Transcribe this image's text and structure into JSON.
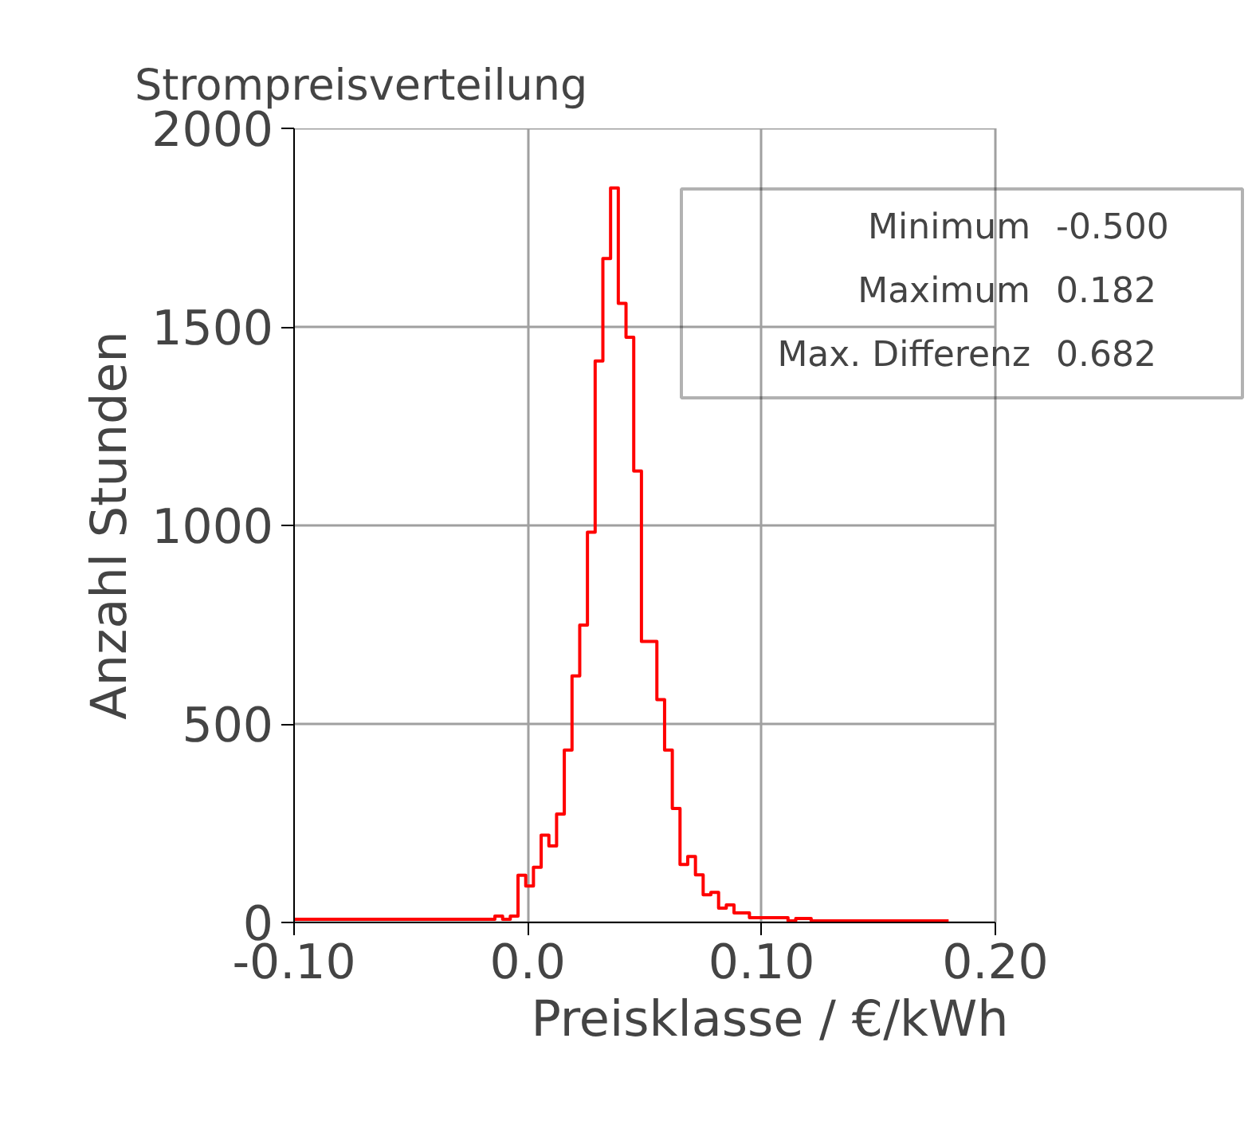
{
  "chart_data": {
    "type": "histogram",
    "title": "Strompreisverteilung",
    "xlabel": "Preisklasse / €/kWh",
    "ylabel": "Anzahl Stunden",
    "bins": [
      -0.1,
      -0.0141,
      -0.0108,
      -0.0075,
      -0.0042,
      -0.0009,
      0.0024,
      0.0057,
      0.009,
      0.0123,
      0.0156,
      0.0189,
      0.0222,
      0.0255,
      0.0288,
      0.0321,
      0.0354,
      0.0387,
      0.042,
      0.0453,
      0.0486,
      0.0519,
      0.0552,
      0.0585,
      0.0618,
      0.0651,
      0.0684,
      0.0717,
      0.075,
      0.0783,
      0.0816,
      0.0849,
      0.0882,
      0.0915,
      0.0948,
      0.0981,
      0.1014,
      0.1047,
      0.108,
      0.1113,
      0.1146,
      0.1179,
      0.1212,
      0.18
    ],
    "values": [
      8,
      16,
      8,
      16,
      119,
      92,
      139,
      220,
      193,
      273,
      434,
      621,
      749,
      983,
      1414,
      1672,
      1850,
      1559,
      1474,
      1137,
      708,
      708,
      561,
      434,
      287,
      146,
      166,
      120,
      70,
      76,
      36,
      44,
      24,
      24,
      12,
      12,
      12,
      12,
      12,
      4,
      10,
      10,
      4
    ],
    "color": "#ff0000",
    "xlim": [
      -0.1,
      0.2
    ],
    "xticks": [
      {
        "value": -0.1,
        "label": "-0.10"
      },
      {
        "value": 0.0,
        "label": "0.0"
      },
      {
        "value": 0.1,
        "label": "0.10"
      },
      {
        "value": 0.2,
        "label": "0.20"
      }
    ],
    "ylim": [
      0,
      2000
    ],
    "yticks": [
      0,
      500,
      1000,
      1500,
      2000
    ],
    "grid": true,
    "annotations": [
      "Minimum",
      "-0.500",
      "Maximum",
      "0.182",
      "Max. Differenz",
      "0.682"
    ]
  }
}
